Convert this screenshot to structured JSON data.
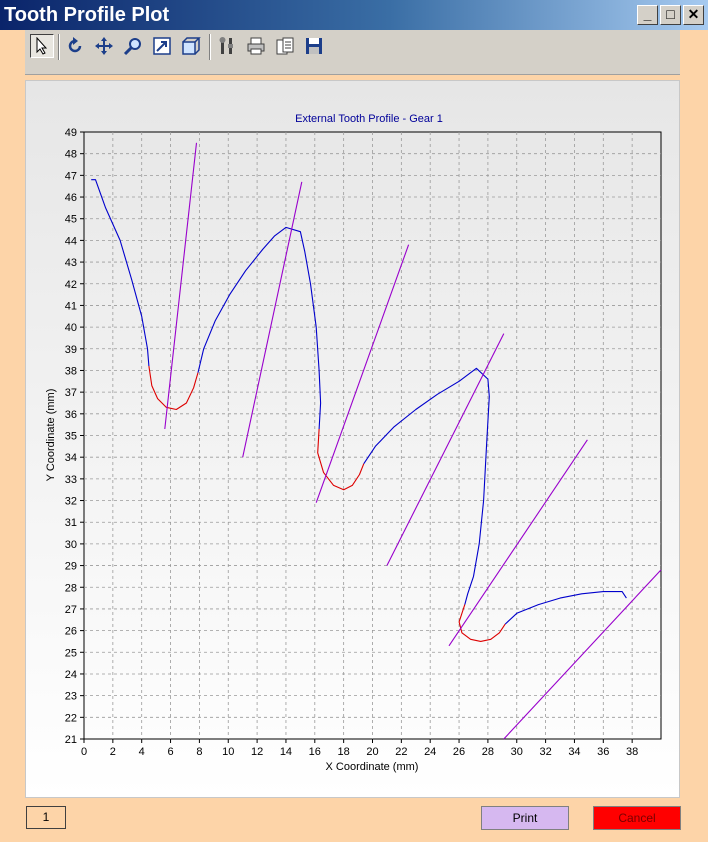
{
  "window": {
    "title": "Tooth Profile Plot",
    "controls": {
      "minimize": "_",
      "maximize": "□",
      "close": "✕"
    }
  },
  "toolbar": {
    "tools": [
      {
        "name": "pointer-icon"
      },
      {
        "name": "rotate-icon"
      },
      {
        "name": "pan-icon"
      },
      {
        "name": "zoom-icon"
      },
      {
        "name": "zoom-box-icon"
      },
      {
        "name": "view-3d-icon"
      },
      {
        "name": "tools-icon"
      },
      {
        "name": "print-icon"
      },
      {
        "name": "copy-icon"
      },
      {
        "name": "save-icon"
      }
    ]
  },
  "colors": {
    "tooth_flank": "#0000cc",
    "root_fillet": "#dd0000",
    "line_of_action": "#9900cc",
    "title": "#000099",
    "print_button": "#d6b8f0",
    "cancel_button": "#ff0000"
  },
  "chart_data": {
    "type": "line",
    "title": "External Tooth Profile - Gear 1",
    "xlabel": "X Coordinate (mm)",
    "ylabel": "Y Coordinate (mm)",
    "xlim": [
      0,
      40
    ],
    "ylim": [
      21,
      49
    ],
    "xticks": [
      0,
      2,
      4,
      6,
      8,
      10,
      12,
      14,
      16,
      18,
      20,
      22,
      24,
      26,
      28,
      30,
      32,
      34,
      36,
      38
    ],
    "yticks": [
      21,
      22,
      23,
      24,
      25,
      26,
      27,
      28,
      29,
      30,
      31,
      32,
      33,
      34,
      35,
      36,
      37,
      38,
      39,
      40,
      41,
      42,
      43,
      44,
      45,
      46,
      47,
      48,
      49
    ],
    "grid": true,
    "series": [
      {
        "role": "flank",
        "points": [
          [
            0.5,
            46.8
          ],
          [
            0.8,
            46.8
          ],
          [
            1.5,
            45.5
          ],
          [
            2.5,
            44.0
          ],
          [
            3.3,
            42.2
          ],
          [
            4.0,
            40.5
          ],
          [
            4.4,
            39.0
          ],
          [
            4.5,
            38.2
          ]
        ]
      },
      {
        "role": "fillet",
        "points": [
          [
            4.5,
            38.2
          ],
          [
            4.7,
            37.3
          ],
          [
            5.1,
            36.7
          ],
          [
            5.7,
            36.3
          ],
          [
            6.4,
            36.2
          ],
          [
            7.1,
            36.5
          ],
          [
            7.6,
            37.2
          ],
          [
            7.9,
            37.9
          ]
        ]
      },
      {
        "role": "flank",
        "points": [
          [
            7.9,
            37.9
          ],
          [
            8.3,
            39.0
          ],
          [
            9.1,
            40.3
          ],
          [
            10.1,
            41.5
          ],
          [
            11.2,
            42.6
          ],
          [
            12.4,
            43.6
          ],
          [
            13.2,
            44.2
          ],
          [
            14.0,
            44.6
          ],
          [
            15.0,
            44.4
          ],
          [
            15.3,
            43.5
          ],
          [
            15.7,
            42.0
          ],
          [
            16.1,
            40.0
          ],
          [
            16.3,
            38.0
          ],
          [
            16.4,
            36.5
          ],
          [
            16.3,
            35.3
          ]
        ]
      },
      {
        "role": "fillet",
        "points": [
          [
            16.3,
            35.3
          ],
          [
            16.2,
            34.2
          ],
          [
            16.6,
            33.3
          ],
          [
            17.3,
            32.7
          ],
          [
            18.0,
            32.5
          ],
          [
            18.6,
            32.7
          ],
          [
            19.1,
            33.2
          ],
          [
            19.4,
            33.7
          ]
        ]
      },
      {
        "role": "flank",
        "points": [
          [
            19.4,
            33.7
          ],
          [
            20.2,
            34.5
          ],
          [
            21.5,
            35.4
          ],
          [
            23.0,
            36.2
          ],
          [
            24.5,
            36.9
          ],
          [
            26.0,
            37.5
          ],
          [
            27.2,
            38.1
          ],
          [
            28.0,
            37.6
          ],
          [
            28.1,
            36.8
          ],
          [
            27.9,
            34.5
          ],
          [
            27.7,
            32.0
          ],
          [
            27.4,
            30.0
          ],
          [
            27.0,
            28.5
          ],
          [
            26.6,
            27.7
          ],
          [
            26.4,
            27.2
          ]
        ]
      },
      {
        "role": "fillet",
        "points": [
          [
            26.4,
            27.2
          ],
          [
            26.0,
            26.4
          ],
          [
            26.2,
            25.9
          ],
          [
            26.8,
            25.6
          ],
          [
            27.5,
            25.5
          ],
          [
            28.2,
            25.6
          ],
          [
            28.8,
            25.9
          ],
          [
            29.2,
            26.3
          ]
        ]
      },
      {
        "role": "flank",
        "points": [
          [
            29.2,
            26.3
          ],
          [
            30.0,
            26.8
          ],
          [
            31.5,
            27.2
          ],
          [
            33.0,
            27.5
          ],
          [
            34.5,
            27.7
          ],
          [
            36.0,
            27.8
          ],
          [
            37.3,
            27.8
          ],
          [
            37.6,
            27.5
          ]
        ]
      },
      {
        "role": "line-of-action",
        "points": [
          [
            5.6,
            35.3
          ],
          [
            7.8,
            48.5
          ]
        ]
      },
      {
        "role": "line-of-action",
        "points": [
          [
            11.0,
            34.0
          ],
          [
            15.1,
            46.7
          ]
        ]
      },
      {
        "role": "line-of-action",
        "points": [
          [
            16.1,
            31.9
          ],
          [
            22.5,
            43.8
          ]
        ]
      },
      {
        "role": "line-of-action",
        "points": [
          [
            21.0,
            29.0
          ],
          [
            29.1,
            39.7
          ]
        ]
      },
      {
        "role": "line-of-action",
        "points": [
          [
            25.3,
            25.3
          ],
          [
            34.9,
            34.8
          ]
        ]
      },
      {
        "role": "line-of-action",
        "points": [
          [
            29.1,
            21.0
          ],
          [
            40.0,
            28.8
          ]
        ]
      }
    ]
  },
  "status": {
    "page": "1"
  },
  "buttons": {
    "print": "Print",
    "cancel": "Cancel"
  }
}
